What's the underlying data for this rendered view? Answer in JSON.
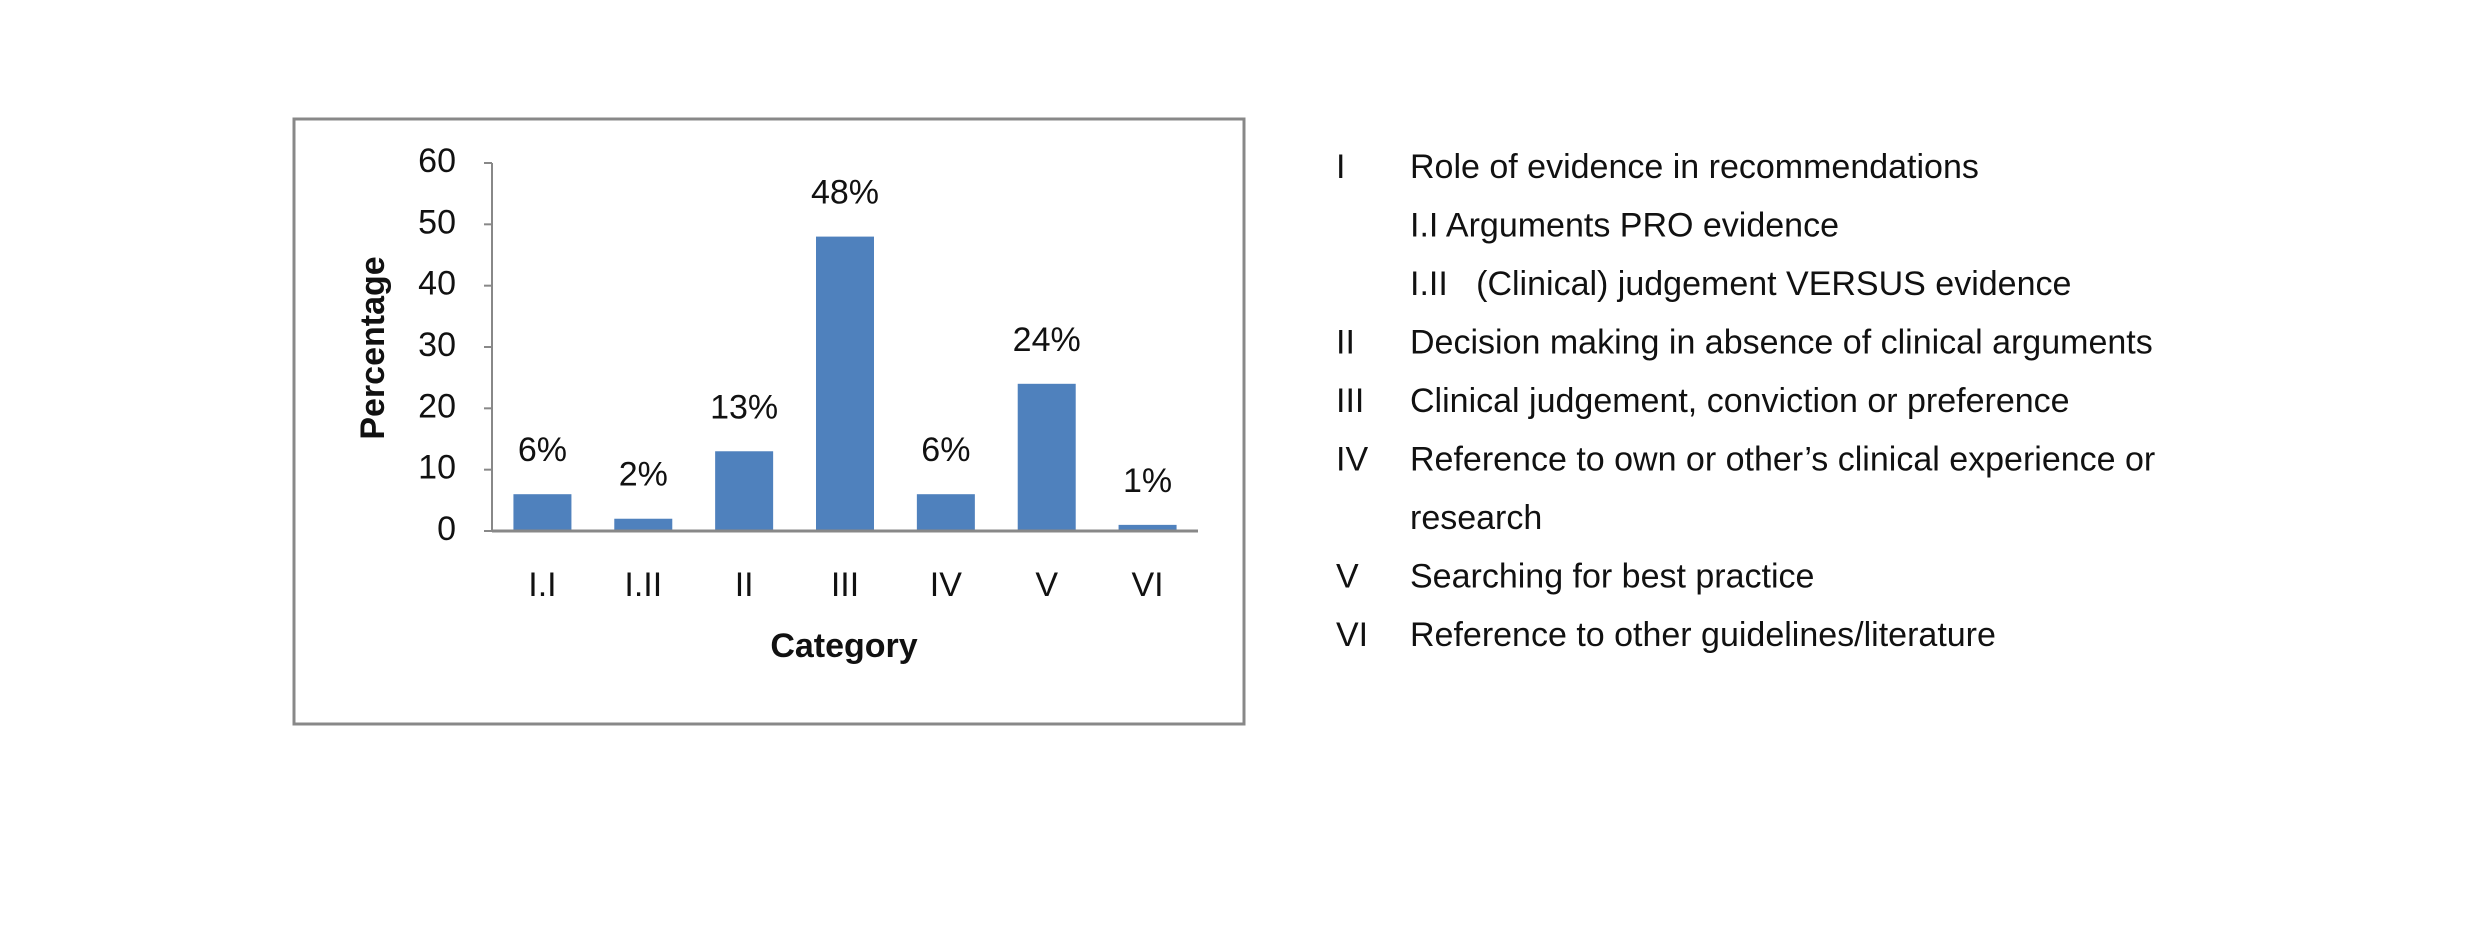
{
  "chart_data": {
    "type": "bar",
    "x_label": "Category",
    "y_label": "Percentage",
    "categories": [
      "I.I",
      "I.II",
      "II",
      "III",
      "IV",
      "V",
      "VI"
    ],
    "values": [
      6,
      2,
      13,
      48,
      6,
      24,
      1
    ],
    "value_labels": [
      "6%",
      "2%",
      "13%",
      "48%",
      "6%",
      "24%",
      "1%"
    ],
    "color": "#4f81bd",
    "ylim": [
      0,
      60
    ],
    "yticks": [
      0,
      10,
      20,
      30,
      40,
      50,
      60
    ],
    "grid": false
  },
  "key": [
    {
      "code": "I",
      "text": [
        "Role of evidence in recommendations"
      ]
    },
    {
      "text": [
        "I.I Arguments PRO evidence"
      ]
    },
    {
      "text": [
        "I.II   (Clinical) judgement VERSUS evidence"
      ]
    },
    {
      "code": "II",
      "text": [
        "Decision making in absence of clinical arguments"
      ]
    },
    {
      "code": "III",
      "text": [
        "Clinical judgement, conviction or preference"
      ]
    },
    {
      "code": "IV",
      "text": [
        "Reference to own or other’s clinical experience or",
        "research"
      ]
    },
    {
      "code": "V",
      "text": [
        "Searching for best practice"
      ]
    },
    {
      "code": "VI",
      "text": [
        "Reference to other guidelines/literature"
      ]
    }
  ]
}
